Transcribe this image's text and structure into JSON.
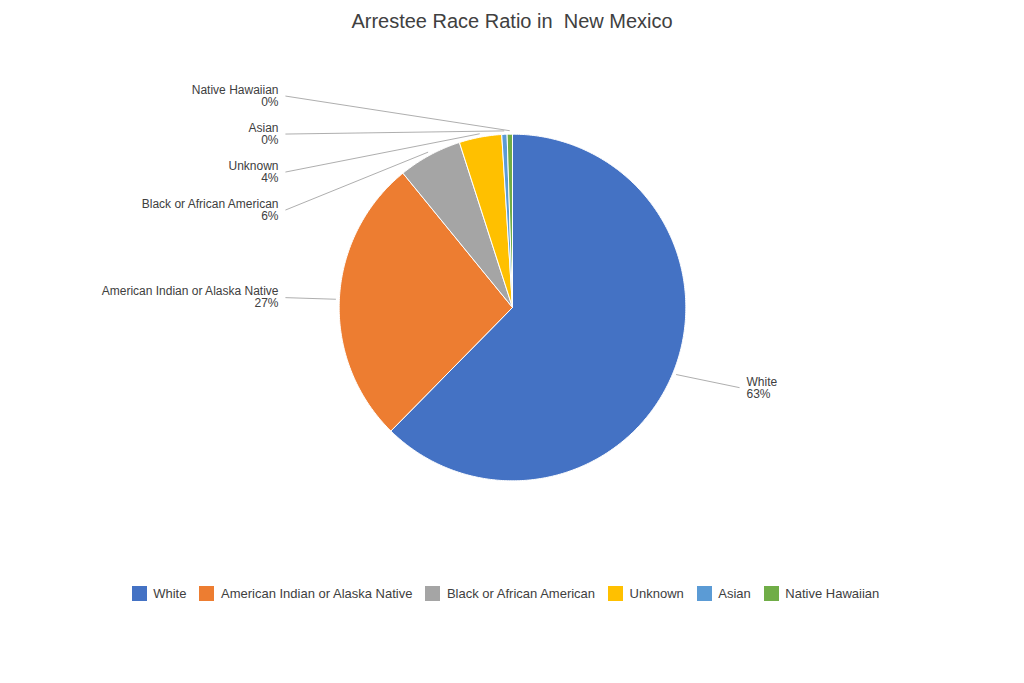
{
  "chart_data": {
    "type": "pie",
    "title": "Arrestee Race Ratio in  New Mexico",
    "categories": [
      "White",
      "American Indian or Alaska Native",
      "Black or African American",
      "Unknown",
      "Asian",
      "Native Hawaiian"
    ],
    "values": [
      63,
      27,
      6,
      4,
      0.5,
      0.5
    ],
    "value_labels": [
      "63%",
      "27%",
      "6%",
      "4%",
      "0%",
      "0%"
    ],
    "colors": [
      "#4472C4",
      "#ED7D31",
      "#A5A5A5",
      "#FFC000",
      "#5B9BD5",
      "#70AD47"
    ],
    "data_labels": true,
    "legend": "bottom"
  }
}
